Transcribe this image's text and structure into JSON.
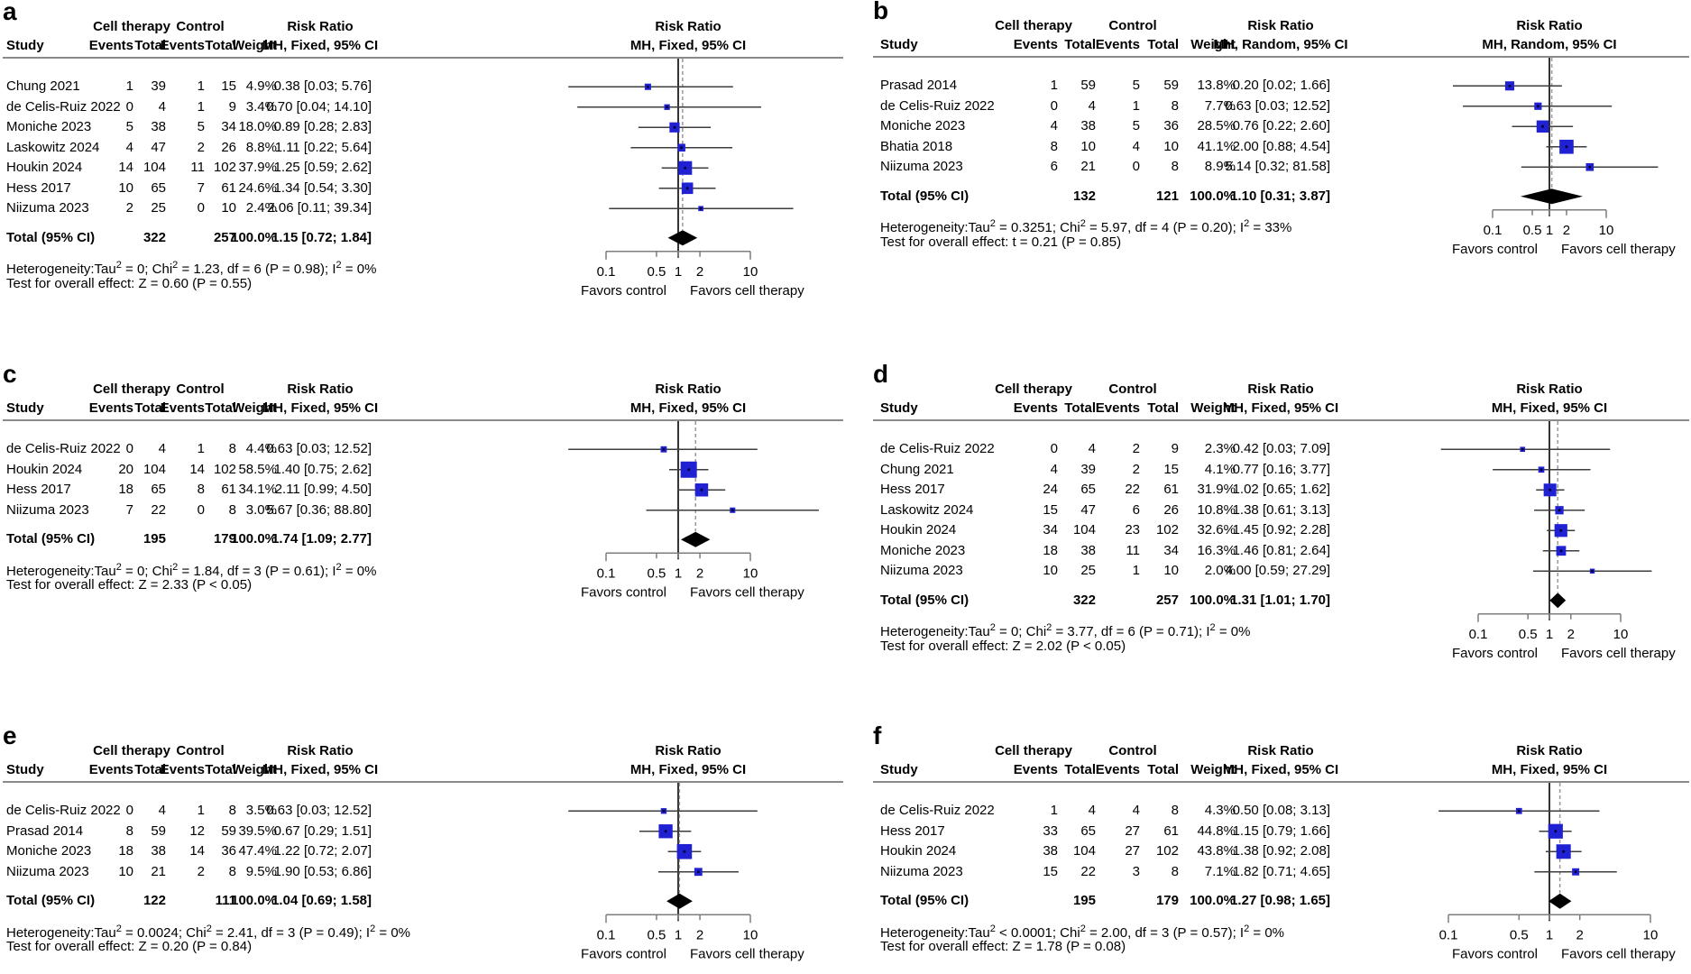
{
  "columns": {
    "study": "Study",
    "events": "Events",
    "total": "Total",
    "weight": "Weight",
    "group_treatment": "Cell therapy",
    "group_control": "Control",
    "effect": "Risk Ratio"
  },
  "axis": {
    "scale": "log",
    "ticks": [
      "0.1",
      "0.5",
      "1",
      "2",
      "10"
    ],
    "tick_values": [
      0.1,
      0.5,
      1,
      2,
      10
    ],
    "favors_left": "Favors control",
    "favors_right": "Favors cell therapy"
  },
  "colors": {
    "square": "#2121d4",
    "square_center": "#000033",
    "diamond": "#000000",
    "ci_line": "#3d3d3d",
    "null_line": "#000000",
    "dashed_line": "#999999",
    "rule": "#8a8a8a",
    "axis": "#7d7d7d",
    "text": "#000000",
    "background": "#ffffff"
  },
  "chart_data": {
    "type": "forest",
    "x_scale": "log",
    "x_ticks": [
      0.1,
      0.5,
      1,
      2,
      10
    ],
    "panels": [
      {
        "panel_label": "a",
        "model": "MH, Fixed, 95% CI",
        "studies": [
          {
            "study": "Chung 2021",
            "events1": "1",
            "total1": "39",
            "events2": "1",
            "total2": "15",
            "weight": "4.9%",
            "weight_value": 4.9,
            "rr": 0.38,
            "ci_low": 0.03,
            "ci_high": 5.76,
            "rr_text": "0.38 [0.03; 5.76]"
          },
          {
            "study": "de Celis-Ruiz 2022",
            "events1": "0",
            "total1": "4",
            "events2": "1",
            "total2": "9",
            "weight": "3.4%",
            "weight_value": 3.4,
            "rr": 0.7,
            "ci_low": 0.04,
            "ci_high": 14.1,
            "rr_text": "0.70 [0.04; 14.10]"
          },
          {
            "study": "Moniche 2023",
            "events1": "5",
            "total1": "38",
            "events2": "5",
            "total2": "34",
            "weight": "18.0%",
            "weight_value": 18.0,
            "rr": 0.89,
            "ci_low": 0.28,
            "ci_high": 2.83,
            "rr_text": "0.89 [0.28; 2.83]"
          },
          {
            "study": "Laskowitz 2024",
            "events1": "4",
            "total1": "47",
            "events2": "2",
            "total2": "26",
            "weight": "8.8%",
            "weight_value": 8.8,
            "rr": 1.11,
            "ci_low": 0.22,
            "ci_high": 5.64,
            "rr_text": "1.11 [0.22; 5.64]"
          },
          {
            "study": "Houkin 2024",
            "events1": "14",
            "total1": "104",
            "events2": "11",
            "total2": "102",
            "weight": "37.9%",
            "weight_value": 37.9,
            "rr": 1.25,
            "ci_low": 0.59,
            "ci_high": 2.62,
            "rr_text": "1.25 [0.59; 2.62]"
          },
          {
            "study": "Hess 2017",
            "events1": "10",
            "total1": "65",
            "events2": "7",
            "total2": "61",
            "weight": "24.6%",
            "weight_value": 24.6,
            "rr": 1.34,
            "ci_low": 0.54,
            "ci_high": 3.3,
            "rr_text": "1.34 [0.54; 3.30]"
          },
          {
            "study": "Niizuma 2023",
            "events1": "2",
            "total1": "25",
            "events2": "0",
            "total2": "10",
            "weight": "2.4%",
            "weight_value": 2.4,
            "rr": 2.06,
            "ci_low": 0.11,
            "ci_high": 39.34,
            "rr_text": "2.06 [0.11; 39.34]"
          }
        ],
        "total": {
          "label": "Total (95% CI)",
          "total1": "322",
          "total2": "257",
          "weight": "100.0%",
          "rr": 1.15,
          "ci_low": 0.72,
          "ci_high": 1.84,
          "rr_text": "1.15 [0.72; 1.84]"
        },
        "heterogeneity_parts": [
          "Heterogeneity:Tau",
          "2",
          " = 0; Chi",
          "2",
          " = 1.23, df = 6 (P = 0.98); I",
          "2",
          " = 0%"
        ],
        "overall_test": "Test for overall effect: Z = 0.60 (P = 0.55)"
      },
      {
        "panel_label": "b",
        "model": "MH, Random, 95% CI",
        "studies": [
          {
            "study": "Prasad 2014",
            "events1": "1",
            "total1": "59",
            "events2": "5",
            "total2": "59",
            "weight": "13.8%",
            "weight_value": 13.8,
            "rr": 0.2,
            "ci_low": 0.02,
            "ci_high": 1.66,
            "rr_text": "0.20 [0.02; 1.66]"
          },
          {
            "study": "de Celis-Ruiz 2022",
            "events1": "0",
            "total1": "4",
            "events2": "1",
            "total2": "8",
            "weight": "7.7%",
            "weight_value": 7.7,
            "rr": 0.63,
            "ci_low": 0.03,
            "ci_high": 12.52,
            "rr_text": "0.63 [0.03; 12.52]"
          },
          {
            "study": "Moniche 2023",
            "events1": "4",
            "total1": "38",
            "events2": "5",
            "total2": "36",
            "weight": "28.5%",
            "weight_value": 28.5,
            "rr": 0.76,
            "ci_low": 0.22,
            "ci_high": 2.6,
            "rr_text": "0.76 [0.22; 2.60]"
          },
          {
            "study": "Bhatia 2018",
            "events1": "8",
            "total1": "10",
            "events2": "4",
            "total2": "10",
            "weight": "41.1%",
            "weight_value": 41.1,
            "rr": 2.0,
            "ci_low": 0.88,
            "ci_high": 4.54,
            "rr_text": "2.00 [0.88; 4.54]"
          },
          {
            "study": "Niizuma 2023",
            "events1": "6",
            "total1": "21",
            "events2": "0",
            "total2": "8",
            "weight": "8.9%",
            "weight_value": 8.9,
            "rr": 5.14,
            "ci_low": 0.32,
            "ci_high": 81.58,
            "rr_text": "5.14 [0.32; 81.58]"
          }
        ],
        "total": {
          "label": "Total (95% CI)",
          "total1": "132",
          "total2": "121",
          "weight": "100.0%",
          "rr": 1.1,
          "ci_low": 0.31,
          "ci_high": 3.87,
          "rr_text": "1.10 [0.31; 3.87]"
        },
        "heterogeneity_parts": [
          "Heterogeneity:Tau",
          "2",
          " = 0.3251; Chi",
          "2",
          " = 5.97, df = 4 (P = 0.20); I",
          "2",
          " = 33%"
        ],
        "overall_test": "Test for overall effect: t = 0.21 (P = 0.85)"
      },
      {
        "panel_label": "c",
        "model": "MH, Fixed, 95% CI",
        "studies": [
          {
            "study": "de Celis-Ruiz 2022",
            "events1": "0",
            "total1": "4",
            "events2": "1",
            "total2": "8",
            "weight": "4.4%",
            "weight_value": 4.4,
            "rr": 0.63,
            "ci_low": 0.03,
            "ci_high": 12.52,
            "rr_text": "0.63 [0.03; 12.52]"
          },
          {
            "study": "Houkin 2024",
            "events1": "20",
            "total1": "104",
            "events2": "14",
            "total2": "102",
            "weight": "58.5%",
            "weight_value": 58.5,
            "rr": 1.4,
            "ci_low": 0.75,
            "ci_high": 2.62,
            "rr_text": "1.40 [0.75; 2.62]"
          },
          {
            "study": "Hess 2017",
            "events1": "18",
            "total1": "65",
            "events2": "8",
            "total2": "61",
            "weight": "34.1%",
            "weight_value": 34.1,
            "rr": 2.11,
            "ci_low": 0.99,
            "ci_high": 4.5,
            "rr_text": "2.11 [0.99; 4.50]"
          },
          {
            "study": "Niizuma 2023",
            "events1": "7",
            "total1": "22",
            "events2": "0",
            "total2": "8",
            "weight": "3.0%",
            "weight_value": 3.0,
            "rr": 5.67,
            "ci_low": 0.36,
            "ci_high": 88.8,
            "rr_text": "5.67 [0.36; 88.80]"
          }
        ],
        "total": {
          "label": "Total (95% CI)",
          "total1": "195",
          "total2": "179",
          "weight": "100.0%",
          "rr": 1.74,
          "ci_low": 1.09,
          "ci_high": 2.77,
          "rr_text": "1.74 [1.09; 2.77]"
        },
        "heterogeneity_parts": [
          "Heterogeneity:Tau",
          "2",
          " = 0; Chi",
          "2",
          " = 1.84, df = 3 (P = 0.61); I",
          "2",
          " = 0%"
        ],
        "overall_test": "Test for overall effect: Z = 2.33 (P < 0.05)"
      },
      {
        "panel_label": "d",
        "model": "MH, Fixed, 95% CI",
        "studies": [
          {
            "study": "de Celis-Ruiz 2022",
            "events1": "0",
            "total1": "4",
            "events2": "2",
            "total2": "9",
            "weight": "2.3%",
            "weight_value": 2.3,
            "rr": 0.42,
            "ci_low": 0.03,
            "ci_high": 7.09,
            "rr_text": "0.42 [0.03; 7.09]"
          },
          {
            "study": "Chung 2021",
            "events1": "4",
            "total1": "39",
            "events2": "2",
            "total2": "15",
            "weight": "4.1%",
            "weight_value": 4.1,
            "rr": 0.77,
            "ci_low": 0.16,
            "ci_high": 3.77,
            "rr_text": "0.77 [0.16; 3.77]"
          },
          {
            "study": "Hess 2017",
            "events1": "24",
            "total1": "65",
            "events2": "22",
            "total2": "61",
            "weight": "31.9%",
            "weight_value": 31.9,
            "rr": 1.02,
            "ci_low": 0.65,
            "ci_high": 1.62,
            "rr_text": "1.02 [0.65; 1.62]"
          },
          {
            "study": "Laskowitz 2024",
            "events1": "15",
            "total1": "47",
            "events2": "6",
            "total2": "26",
            "weight": "10.8%",
            "weight_value": 10.8,
            "rr": 1.38,
            "ci_low": 0.61,
            "ci_high": 3.13,
            "rr_text": "1.38 [0.61; 3.13]"
          },
          {
            "study": "Houkin 2024",
            "events1": "34",
            "total1": "104",
            "events2": "23",
            "total2": "102",
            "weight": "32.6%",
            "weight_value": 32.6,
            "rr": 1.45,
            "ci_low": 0.92,
            "ci_high": 2.28,
            "rr_text": "1.45 [0.92; 2.28]"
          },
          {
            "study": "Moniche 2023",
            "events1": "18",
            "total1": "38",
            "events2": "11",
            "total2": "34",
            "weight": "16.3%",
            "weight_value": 16.3,
            "rr": 1.46,
            "ci_low": 0.81,
            "ci_high": 2.64,
            "rr_text": "1.46 [0.81; 2.64]"
          },
          {
            "study": "Niizuma 2023",
            "events1": "10",
            "total1": "25",
            "events2": "1",
            "total2": "10",
            "weight": "2.0%",
            "weight_value": 2.0,
            "rr": 4.0,
            "ci_low": 0.59,
            "ci_high": 27.29,
            "rr_text": "4.00 [0.59; 27.29]"
          }
        ],
        "total": {
          "label": "Total (95% CI)",
          "total1": "322",
          "total2": "257",
          "weight": "100.0%",
          "rr": 1.31,
          "ci_low": 1.01,
          "ci_high": 1.7,
          "rr_text": "1.31 [1.01; 1.70]"
        },
        "heterogeneity_parts": [
          "Heterogeneity:Tau",
          "2",
          " = 0; Chi",
          "2",
          " = 3.77, df = 6 (P = 0.71); I",
          "2",
          " = 0%"
        ],
        "overall_test": "Test for overall effect: Z = 2.02 (P < 0.05)"
      },
      {
        "panel_label": "e",
        "model": "MH, Fixed, 95% CI",
        "studies": [
          {
            "study": "de Celis-Ruiz 2022",
            "events1": "0",
            "total1": "4",
            "events2": "1",
            "total2": "8",
            "weight": "3.5%",
            "weight_value": 3.5,
            "rr": 0.63,
            "ci_low": 0.03,
            "ci_high": 12.52,
            "rr_text": "0.63 [0.03; 12.52]"
          },
          {
            "study": "Prasad 2014",
            "events1": "8",
            "total1": "59",
            "events2": "12",
            "total2": "59",
            "weight": "39.5%",
            "weight_value": 39.5,
            "rr": 0.67,
            "ci_low": 0.29,
            "ci_high": 1.51,
            "rr_text": "0.67 [0.29; 1.51]"
          },
          {
            "study": "Moniche 2023",
            "events1": "18",
            "total1": "38",
            "events2": "14",
            "total2": "36",
            "weight": "47.4%",
            "weight_value": 47.4,
            "rr": 1.22,
            "ci_low": 0.72,
            "ci_high": 2.07,
            "rr_text": "1.22 [0.72; 2.07]"
          },
          {
            "study": "Niizuma 2023",
            "events1": "10",
            "total1": "21",
            "events2": "2",
            "total2": "8",
            "weight": "9.5%",
            "weight_value": 9.5,
            "rr": 1.9,
            "ci_low": 0.53,
            "ci_high": 6.86,
            "rr_text": "1.90 [0.53; 6.86]"
          }
        ],
        "total": {
          "label": "Total (95% CI)",
          "total1": "122",
          "total2": "111",
          "weight": "100.0%",
          "rr": 1.04,
          "ci_low": 0.69,
          "ci_high": 1.58,
          "rr_text": "1.04 [0.69; 1.58]"
        },
        "heterogeneity_parts": [
          "Heterogeneity:Tau",
          "2",
          " = 0.0024; Chi",
          "2",
          " = 2.41, df = 3 (P = 0.49); I",
          "2",
          " = 0%"
        ],
        "overall_test": "Test for overall effect: Z = 0.20 (P = 0.84)"
      },
      {
        "panel_label": "f",
        "model": "MH, Fixed, 95% CI",
        "studies": [
          {
            "study": "de Celis-Ruiz 2022",
            "events1": "1",
            "total1": "4",
            "events2": "4",
            "total2": "8",
            "weight": "4.3%",
            "weight_value": 4.3,
            "rr": 0.5,
            "ci_low": 0.08,
            "ci_high": 3.13,
            "rr_text": "0.50 [0.08; 3.13]"
          },
          {
            "study": "Hess 2017",
            "events1": "33",
            "total1": "65",
            "events2": "27",
            "total2": "61",
            "weight": "44.8%",
            "weight_value": 44.8,
            "rr": 1.15,
            "ci_low": 0.79,
            "ci_high": 1.66,
            "rr_text": "1.15 [0.79; 1.66]"
          },
          {
            "study": "Houkin 2024",
            "events1": "38",
            "total1": "104",
            "events2": "27",
            "total2": "102",
            "weight": "43.8%",
            "weight_value": 43.8,
            "rr": 1.38,
            "ci_low": 0.92,
            "ci_high": 2.08,
            "rr_text": "1.38 [0.92; 2.08]"
          },
          {
            "study": "Niizuma 2023",
            "events1": "15",
            "total1": "22",
            "events2": "3",
            "total2": "8",
            "weight": "7.1%",
            "weight_value": 7.1,
            "rr": 1.82,
            "ci_low": 0.71,
            "ci_high": 4.65,
            "rr_text": "1.82 [0.71; 4.65]"
          }
        ],
        "total": {
          "label": "Total (95% CI)",
          "total1": "195",
          "total2": "179",
          "weight": "100.0%",
          "rr": 1.27,
          "ci_low": 0.98,
          "ci_high": 1.65,
          "rr_text": "1.27 [0.98; 1.65]"
        },
        "heterogeneity_parts": [
          "Heterogeneity:Tau",
          "2",
          " < 0.0001; Chi",
          "2",
          " = 2.00, df = 3 (P = 0.57); I",
          "2",
          " = 0%"
        ],
        "overall_test": "Test for overall effect: Z = 1.78 (P = 0.08)"
      }
    ]
  }
}
